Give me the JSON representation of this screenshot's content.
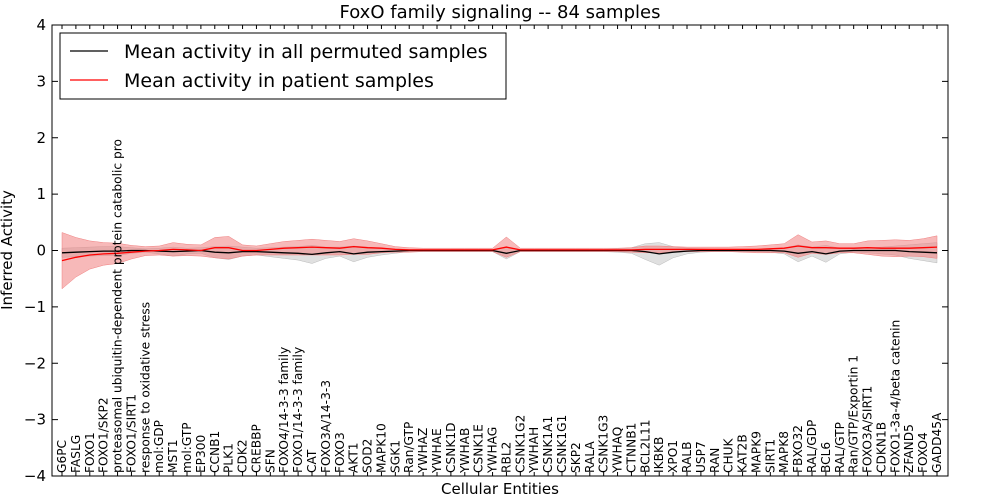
{
  "chart_data": {
    "type": "line",
    "title": "FoxO family signaling -- 84 samples",
    "xlabel": "Cellular Entities",
    "ylabel": "Inferred Activity",
    "ylim": [
      -4,
      4
    ],
    "yticks": [
      -4,
      -3,
      -2,
      -1,
      0,
      1,
      2,
      3,
      4
    ],
    "ytick_labels": [
      "−4",
      "−3",
      "−2",
      "−1",
      "0",
      "1",
      "2",
      "3",
      "4"
    ],
    "legend_position": "top-left",
    "categories": [
      "G6PC",
      "FASLG",
      "FOXO1",
      "FOXO1/SKP2",
      "proteasomal ubiquitin-dependent protein catabolic pro",
      "FOXO1/SIRT1",
      "response to oxidative stress",
      "mol:GDP",
      "MST1",
      "mol:GTP",
      "EP300",
      "CCNB1",
      "PLK1",
      "CDK2",
      "CREBBP",
      "SFN",
      "FOXO4/14-3-3 family",
      "FOXO1/14-3-3 family",
      "CAT",
      "FOXO3A/14-3-3",
      "FOXO3",
      "AKT1",
      "SOD2",
      "MAPK10",
      "SGK1",
      "Ran/GTP",
      "YWHAZ",
      "YWHAE",
      "CSNK1D",
      "YWHAB",
      "CSNK1E",
      "YWHAG",
      "RBL2",
      "CSNK1G2",
      "YWHAH",
      "CSNK1A1",
      "CSNK1G1",
      "SKP2",
      "RALA",
      "CSNK1G3",
      "YWHAQ",
      "CTNNB1",
      "BCL2L11",
      "IKBKB",
      "XPO1",
      "RALB",
      "USP7",
      "RAN",
      "CHUK",
      "KAT2B",
      "MAPK9",
      "SIRT1",
      "MAPK8",
      "FBXO32",
      "RAL/GDP",
      "BCL6",
      "RAL/GTP",
      "Ran/GTP/Exportin 1",
      "FOXO3A/SIRT1",
      "CDKN1B",
      "FOXO1-3a-4/beta catenin",
      "ZFAND5",
      "FOXO4",
      "GADD45A"
    ],
    "series": [
      {
        "name": "Mean activity in all permuted samples",
        "color": "#000000",
        "fill_color": "#bbbbbb",
        "values": [
          -0.04,
          -0.03,
          -0.02,
          -0.01,
          -0.01,
          0,
          0,
          -0.01,
          -0.02,
          -0.01,
          0,
          -0.03,
          -0.04,
          -0.02,
          -0.02,
          -0.03,
          -0.04,
          -0.05,
          -0.07,
          -0.04,
          -0.02,
          -0.06,
          -0.03,
          -0.02,
          -0.01,
          0,
          0,
          0,
          0,
          0,
          0,
          0,
          -0.05,
          0,
          0,
          0,
          0,
          0,
          0,
          0,
          0,
          0,
          -0.02,
          -0.06,
          -0.03,
          -0.01,
          0,
          0,
          0,
          0,
          0,
          0,
          -0.01,
          -0.05,
          -0.02,
          -0.06,
          -0.01,
          0,
          0,
          0,
          0,
          -0.02,
          -0.03,
          -0.04
        ],
        "spread": [
          0.08,
          0.08,
          0.08,
          0.08,
          0.08,
          0.05,
          0.03,
          0.05,
          0.08,
          0.05,
          0.05,
          0.1,
          0.12,
          0.08,
          0.06,
          0.08,
          0.1,
          0.12,
          0.16,
          0.1,
          0.08,
          0.14,
          0.09,
          0.06,
          0.04,
          0.02,
          0.02,
          0.02,
          0.02,
          0.02,
          0.02,
          0.02,
          0.1,
          0.02,
          0.02,
          0.02,
          0.02,
          0.02,
          0.02,
          0.02,
          0.03,
          0.05,
          0.14,
          0.2,
          0.1,
          0.05,
          0.03,
          0.02,
          0.02,
          0.02,
          0.02,
          0.03,
          0.05,
          0.15,
          0.08,
          0.15,
          0.05,
          0.03,
          0.04,
          0.06,
          0.08,
          0.12,
          0.15,
          0.18
        ]
      },
      {
        "name": "Mean activity in patient samples",
        "color": "#ff0000",
        "fill_color": "#f08080",
        "values": [
          -0.18,
          -0.12,
          -0.08,
          -0.06,
          -0.05,
          -0.03,
          -0.01,
          0,
          0.02,
          0.01,
          0,
          0.05,
          0.05,
          0,
          0,
          0.02,
          0.04,
          0.05,
          0.06,
          0.05,
          0.04,
          0.07,
          0.05,
          0.04,
          0.02,
          0.01,
          0.01,
          0.01,
          0.01,
          0.01,
          0.01,
          0.01,
          0.06,
          0.01,
          0.01,
          0.01,
          0.01,
          0.01,
          0.01,
          0.01,
          0.01,
          0.01,
          0.02,
          0.02,
          0.02,
          0.02,
          0.02,
          0.02,
          0.02,
          0.02,
          0.02,
          0.03,
          0.04,
          0.08,
          0.05,
          0.05,
          0.04,
          0.04,
          0.05,
          0.04,
          0.04,
          0.04,
          0.05,
          0.06
        ],
        "spread": [
          0.5,
          0.35,
          0.25,
          0.2,
          0.18,
          0.12,
          0.08,
          0.08,
          0.12,
          0.1,
          0.1,
          0.18,
          0.2,
          0.1,
          0.08,
          0.1,
          0.12,
          0.13,
          0.14,
          0.13,
          0.12,
          0.14,
          0.12,
          0.08,
          0.05,
          0.04,
          0.03,
          0.03,
          0.03,
          0.03,
          0.03,
          0.03,
          0.18,
          0.03,
          0.03,
          0.03,
          0.03,
          0.03,
          0.03,
          0.03,
          0.03,
          0.04,
          0.06,
          0.06,
          0.05,
          0.04,
          0.04,
          0.04,
          0.04,
          0.05,
          0.06,
          0.07,
          0.08,
          0.2,
          0.1,
          0.12,
          0.08,
          0.08,
          0.12,
          0.14,
          0.15,
          0.14,
          0.16,
          0.2
        ]
      }
    ]
  }
}
